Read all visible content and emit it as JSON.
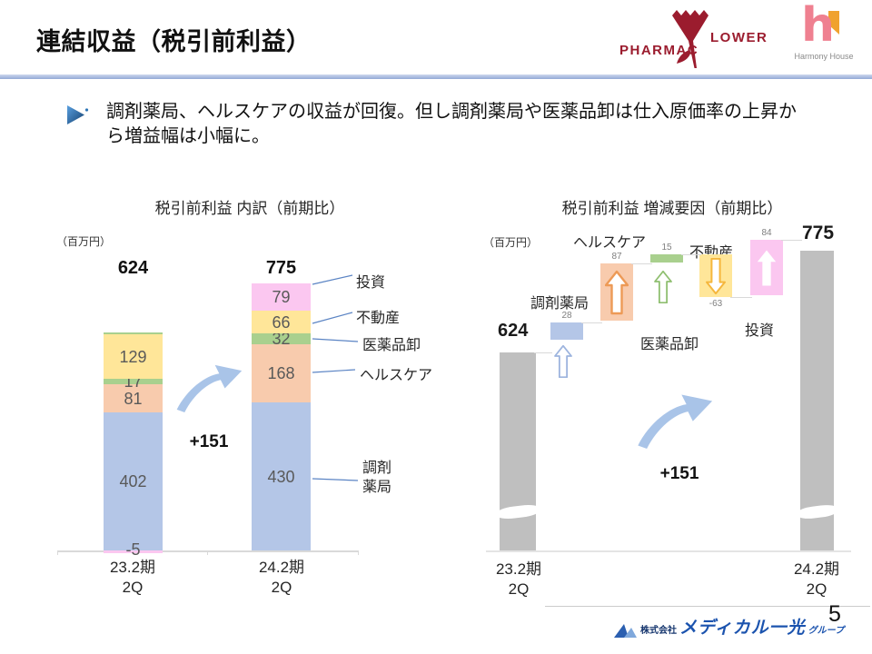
{
  "page": {
    "title": "連結収益（税引前利益）",
    "page_number": "5"
  },
  "header": {
    "logos": {
      "pharmacy_flower": {
        "text_left": "PHARMAC",
        "text_right": "LOWER"
      },
      "harmony_house": {
        "h_letter": "h",
        "caption": "Harmony House"
      }
    }
  },
  "bullet": {
    "text": "調剤薬局、ヘルスケアの収益が回復。但し調剤薬局や医薬品卸は仕入原価率の上昇から増益幅は小幅に。"
  },
  "footer": {
    "company_prefix": "株式会社",
    "company_name": "メディカル一光",
    "company_suffix": "グループ"
  },
  "colors": {
    "pharmacy_red": "#9b1c2e",
    "harmony_pink": "#ef8090",
    "harmony_orange": "#f0a22e",
    "divider_blue": "#9db1d9",
    "swoosh_blue": "#a9c4e8",
    "gray_bar": "#bfbfbf",
    "series_pharmacy": "#b4c6e7",
    "series_healthcare": "#f8cbad",
    "series_wholesale": "#a9d08e",
    "series_estate": "#ffe699",
    "series_invest": "#fbc7f0",
    "footer_blue": "#1b53ae"
  },
  "chart_data": [
    {
      "type": "bar",
      "variant": "stacked",
      "title": "税引前利益 内訳（前期比）",
      "unit": "（百万円）",
      "categories": [
        "23.2期\n2Q",
        "24.2期\n2Q"
      ],
      "totals": [
        624,
        775
      ],
      "series": [
        {
          "name": "調剤薬局",
          "color": "#b4c6e7",
          "values": [
            402,
            430
          ]
        },
        {
          "name": "ヘルスケア",
          "color": "#f8cbad",
          "values": [
            81,
            168
          ]
        },
        {
          "name": "医薬品卸",
          "color": "#a9d08e",
          "values": [
            17,
            32
          ]
        },
        {
          "name": "不動産",
          "color": "#ffe699",
          "values": [
            129,
            66
          ]
        },
        {
          "name": "投資",
          "color": "#fbc7f0",
          "values": [
            -5,
            79
          ]
        }
      ],
      "delta_label": "+151",
      "ylim": [
        -5,
        775
      ],
      "grid": false,
      "legend_position": "right-callouts"
    },
    {
      "type": "waterfall",
      "title": "税引前利益 増減要因（前期比）",
      "unit": "（百万円）",
      "start": {
        "label": "23.2期\n2Q",
        "value": 624
      },
      "end": {
        "label": "24.2期\n2Q",
        "value": 775
      },
      "steps": [
        {
          "name": "調剤薬局",
          "value": 28,
          "color": "#b4c6e7",
          "direction": "up"
        },
        {
          "name": "ヘルスケア",
          "value": 87,
          "color": "#f8cbad",
          "direction": "up"
        },
        {
          "name": "医薬品卸",
          "value": 15,
          "color": "#a9d08e",
          "direction": "up"
        },
        {
          "name": "不動産",
          "value": -63,
          "color": "#ffe699",
          "direction": "down"
        },
        {
          "name": "投資",
          "value": 84,
          "color": "#fbc7f0",
          "direction": "up"
        }
      ],
      "delta_label": "+151",
      "axis_break": true,
      "grid": false
    }
  ]
}
